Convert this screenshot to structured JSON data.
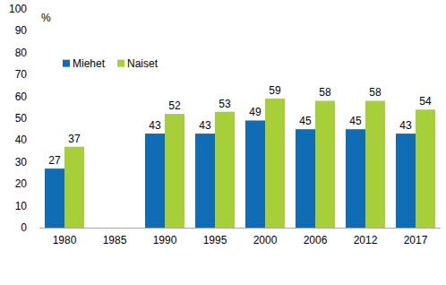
{
  "chart_data": {
    "type": "bar",
    "ylabel": "%",
    "categories": [
      "1980",
      "1985",
      "1990",
      "1995",
      "2000",
      "2006",
      "2012",
      "2017"
    ],
    "series": [
      {
        "name": "Miehet",
        "color": "#0f6db5",
        "values": [
          27,
          null,
          43,
          43,
          49,
          45,
          45,
          43
        ]
      },
      {
        "name": "Naiset",
        "color": "#a7cf38",
        "values": [
          37,
          null,
          52,
          53,
          59,
          58,
          58,
          54
        ]
      }
    ],
    "ylim": [
      0,
      100
    ],
    "yticks": [
      0,
      10,
      20,
      30,
      40,
      50,
      60,
      70,
      80,
      90,
      100
    ],
    "grid": false,
    "legend": "top-left",
    "data_labels": true
  }
}
